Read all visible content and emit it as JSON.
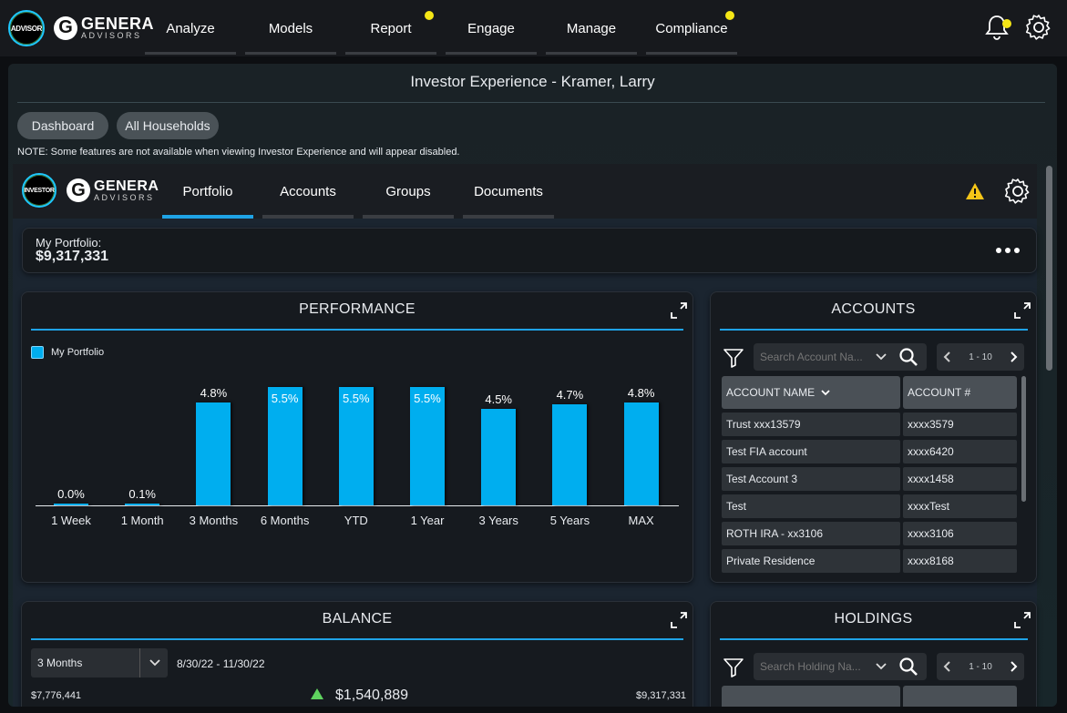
{
  "topbar": {
    "advisor_badge": "ADVISOR",
    "brand_line1": "GENERA",
    "brand_line2": "ADVISORS",
    "nav": [
      {
        "label": "Analyze",
        "dot": false
      },
      {
        "label": "Models",
        "dot": false
      },
      {
        "label": "Report",
        "dot": true
      },
      {
        "label": "Engage",
        "dot": false
      },
      {
        "label": "Manage",
        "dot": false
      },
      {
        "label": "Compliance",
        "dot": true
      }
    ],
    "icons": {
      "bell": "bell-icon",
      "settings": "gear-icon"
    },
    "dot_color": "#f5e616"
  },
  "shell": {
    "title": "Investor Experience - Kramer, Larry",
    "pills": [
      "Dashboard",
      "All Households"
    ],
    "note": "NOTE: Some features are not available when viewing Investor Experience and will appear disabled."
  },
  "investor": {
    "badge": "INVESTOR",
    "brand_line1": "GENERA",
    "brand_line2": "ADVISORS",
    "tabs": [
      "Portfolio",
      "Accounts",
      "Groups",
      "Documents"
    ],
    "active_tab": "Portfolio",
    "accent": "#1fa3e6"
  },
  "portfolio": {
    "label": "My Portfolio:",
    "value": "$9,317,331",
    "menu_icon": "more-horizontal-icon"
  },
  "performance": {
    "title": "PERFORMANCE",
    "legend": "My Portfolio",
    "chart_data": {
      "type": "bar",
      "categories": [
        "1 Week",
        "1 Month",
        "3 Months",
        "6 Months",
        "YTD",
        "1 Year",
        "3 Years",
        "5 Years",
        "MAX"
      ],
      "series": [
        {
          "name": "My Portfolio",
          "values": [
            0.0,
            0.1,
            4.8,
            5.5,
            5.5,
            5.5,
            4.5,
            4.7,
            4.8
          ]
        }
      ],
      "data_labels": [
        "0.0%",
        "0.1%",
        "4.8%",
        "5.5%",
        "5.5%",
        "5.5%",
        "4.5%",
        "4.7%",
        "4.8%"
      ],
      "ylim": [
        0,
        5.5
      ],
      "grid": false,
      "legend_position": "top-left",
      "color": "#00aeef"
    }
  },
  "accounts": {
    "title": "ACCOUNTS",
    "search_placeholder": "Search Account Na...",
    "pager": "1 - 10",
    "columns": [
      "ACCOUNT NAME",
      "ACCOUNT #"
    ],
    "rows": [
      [
        "Trust xxx13579",
        "xxxx3579"
      ],
      [
        "Test FIA account",
        "xxxx6420"
      ],
      [
        "Test Account 3",
        "xxxx1458"
      ],
      [
        "Test",
        "xxxxTest"
      ],
      [
        "ROTH IRA - xx3106",
        "xxxx3106"
      ],
      [
        "Private Residence",
        "xxxx8168"
      ]
    ]
  },
  "balance": {
    "title": "BALANCE",
    "period": "3 Months",
    "date_range": "8/30/22 - 11/30/22",
    "start_value": "$7,776,441",
    "change": "$1,540,889",
    "end_value": "$9,317,331"
  },
  "holdings": {
    "title": "HOLDINGS",
    "search_placeholder": "Search Holding Na...",
    "pager": "1 - 10"
  }
}
